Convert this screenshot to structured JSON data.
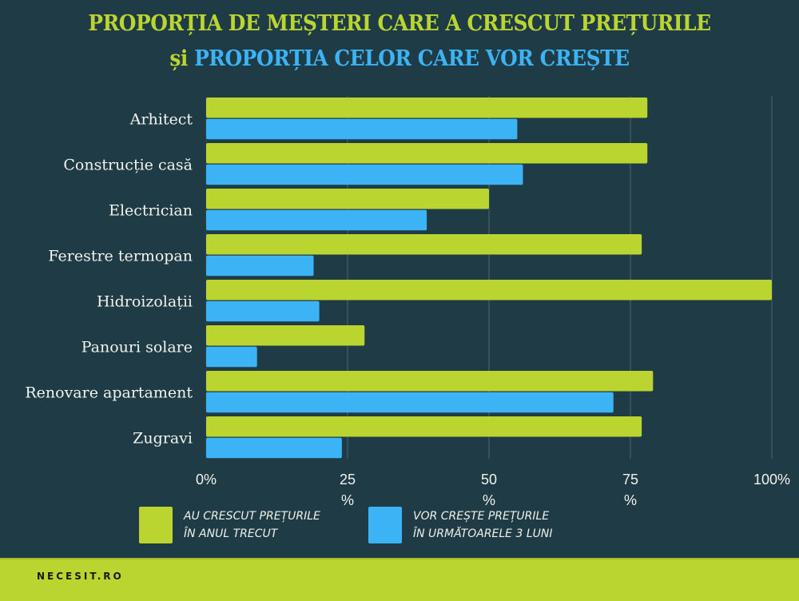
{
  "header": {
    "title_line1": "PROPORȚIA DE MEȘTERI CARE A CRESCUT PREȚURILE",
    "title_line2_prefix": "și",
    "title_line2_main": "PROPORȚIA CELOR CARE VOR CREȘTE"
  },
  "colors": {
    "background": "#1f3b45",
    "series_green": "#bbd530",
    "series_blue": "#3bb3f5",
    "gridline": "#3d5862",
    "footer": "#bbd530"
  },
  "chart_data": {
    "type": "bar",
    "orientation": "horizontal",
    "title": "PROPORȚIA DE MEȘTERI CARE A CRESCUT PREȚURILE și PROPORȚIA CELOR CARE VOR CREȘTE",
    "categories": [
      "Arhitect",
      "Construcție casă",
      "Electrician",
      "Ferestre termopan",
      "Hidroizolații",
      "Panouri solare",
      "Renovare apartament",
      "Zugravi"
    ],
    "series": [
      {
        "name": "AU CRESCUT PREȚURILE ÎN ANUL TRECUT",
        "color": "#bbd530",
        "values": [
          78,
          78,
          50,
          77,
          100,
          28,
          79,
          77
        ]
      },
      {
        "name": "VOR CREȘTE PREȚURILE ÎN URMĂTOARELE 3 LUNI",
        "color": "#3bb3f5",
        "values": [
          55,
          56,
          39,
          19,
          20,
          9,
          72,
          24
        ]
      }
    ],
    "xlim": [
      0,
      100
    ],
    "x_ticks": [
      0,
      25,
      50,
      75,
      100
    ],
    "x_tick_labels": [
      "0%",
      "25\n%",
      "50\n%",
      "75\n%",
      "100%"
    ],
    "xlabel": "",
    "ylabel": "",
    "grid": true,
    "legend_position": "bottom"
  },
  "legend": {
    "items": [
      {
        "line1": "AU CRESCUT PREȚURILE",
        "line2": "ÎN ANUL TRECUT"
      },
      {
        "line1": "VOR CREȘTE PREȚURILE",
        "line2": "ÎN URMĂTOARELE 3 LUNI"
      }
    ]
  },
  "footer": {
    "brand": "NECESIT.RO"
  }
}
